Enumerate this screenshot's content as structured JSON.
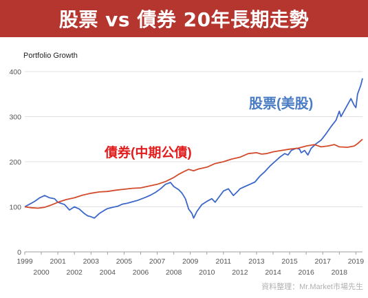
{
  "header": {
    "title": "股票 vs 債券 20年長期走勢"
  },
  "source_note": "資料整理：Mr.Market市場先生",
  "colors": {
    "banner": "#b5352f",
    "stock_line": "#3a66c9",
    "bond_line": "#d24a2a",
    "grid": "#e0e0e0",
    "axis_text": "#555555",
    "stock_label": "#4a7cc4",
    "bond_label": "#e11d1d"
  },
  "chart_data": {
    "type": "line",
    "subtitle": "Portfolio Growth",
    "ylim": [
      0,
      400
    ],
    "y_ticks": [
      0,
      100,
      200,
      300,
      400
    ],
    "xlim": [
      1999,
      2019.4
    ],
    "x_ticks": [
      "1999",
      "2000",
      "2001",
      "2002",
      "2003",
      "2004",
      "2005",
      "2006",
      "2007",
      "2008",
      "2009",
      "2010",
      "2011",
      "2012",
      "2013",
      "2014",
      "2015",
      "2016",
      "2017",
      "2018",
      "2019"
    ],
    "grid": true,
    "series": [
      {
        "name": "股票(美股)",
        "color": "#3a66c9",
        "points": [
          [
            1999.0,
            100
          ],
          [
            1999.3,
            106
          ],
          [
            1999.6,
            112
          ],
          [
            1999.9,
            120
          ],
          [
            2000.2,
            125
          ],
          [
            2000.5,
            120
          ],
          [
            2000.8,
            118
          ],
          [
            2001.0,
            110
          ],
          [
            2001.4,
            105
          ],
          [
            2001.7,
            93
          ],
          [
            2002.0,
            100
          ],
          [
            2002.3,
            95
          ],
          [
            2002.6,
            85
          ],
          [
            2002.8,
            80
          ],
          [
            2003.0,
            78
          ],
          [
            2003.2,
            75
          ],
          [
            2003.5,
            85
          ],
          [
            2003.8,
            92
          ],
          [
            2004.0,
            96
          ],
          [
            2004.3,
            99
          ],
          [
            2004.6,
            101
          ],
          [
            2004.9,
            106
          ],
          [
            2005.2,
            108
          ],
          [
            2005.5,
            111
          ],
          [
            2005.8,
            114
          ],
          [
            2006.0,
            117
          ],
          [
            2006.3,
            121
          ],
          [
            2006.6,
            126
          ],
          [
            2006.9,
            132
          ],
          [
            2007.2,
            140
          ],
          [
            2007.5,
            150
          ],
          [
            2007.8,
            154
          ],
          [
            2008.0,
            145
          ],
          [
            2008.3,
            138
          ],
          [
            2008.5,
            130
          ],
          [
            2008.7,
            118
          ],
          [
            2008.9,
            95
          ],
          [
            2009.1,
            85
          ],
          [
            2009.2,
            75
          ],
          [
            2009.4,
            90
          ],
          [
            2009.7,
            105
          ],
          [
            2010.0,
            112
          ],
          [
            2010.3,
            118
          ],
          [
            2010.5,
            110
          ],
          [
            2010.8,
            125
          ],
          [
            2011.0,
            135
          ],
          [
            2011.3,
            140
          ],
          [
            2011.6,
            125
          ],
          [
            2011.8,
            132
          ],
          [
            2012.0,
            140
          ],
          [
            2012.3,
            145
          ],
          [
            2012.6,
            150
          ],
          [
            2012.9,
            155
          ],
          [
            2013.2,
            168
          ],
          [
            2013.5,
            178
          ],
          [
            2013.8,
            190
          ],
          [
            2014.1,
            200
          ],
          [
            2014.4,
            210
          ],
          [
            2014.7,
            218
          ],
          [
            2014.9,
            215
          ],
          [
            2015.1,
            225
          ],
          [
            2015.4,
            230
          ],
          [
            2015.6,
            228
          ],
          [
            2015.7,
            220
          ],
          [
            2015.9,
            225
          ],
          [
            2016.1,
            215
          ],
          [
            2016.3,
            230
          ],
          [
            2016.6,
            240
          ],
          [
            2016.9,
            248
          ],
          [
            2017.2,
            262
          ],
          [
            2017.5,
            278
          ],
          [
            2017.8,
            292
          ],
          [
            2018.0,
            312
          ],
          [
            2018.1,
            300
          ],
          [
            2018.4,
            320
          ],
          [
            2018.7,
            340
          ],
          [
            2018.9,
            325
          ],
          [
            2019.0,
            320
          ],
          [
            2019.1,
            350
          ],
          [
            2019.2,
            360
          ],
          [
            2019.3,
            370
          ],
          [
            2019.4,
            385
          ]
        ]
      },
      {
        "name": "債券(中期公債)",
        "color": "#d24a2a",
        "points": [
          [
            1999.0,
            100
          ],
          [
            1999.4,
            98
          ],
          [
            1999.8,
            97
          ],
          [
            2000.2,
            99
          ],
          [
            2000.6,
            104
          ],
          [
            2001.0,
            110
          ],
          [
            2001.5,
            116
          ],
          [
            2002.0,
            120
          ],
          [
            2002.5,
            126
          ],
          [
            2003.0,
            130
          ],
          [
            2003.5,
            133
          ],
          [
            2004.0,
            134
          ],
          [
            2004.5,
            137
          ],
          [
            2005.0,
            139
          ],
          [
            2005.5,
            141
          ],
          [
            2006.0,
            142
          ],
          [
            2006.5,
            146
          ],
          [
            2007.0,
            150
          ],
          [
            2007.5,
            156
          ],
          [
            2008.0,
            165
          ],
          [
            2008.3,
            172
          ],
          [
            2008.6,
            178
          ],
          [
            2008.9,
            183
          ],
          [
            2009.2,
            180
          ],
          [
            2009.5,
            184
          ],
          [
            2010.0,
            188
          ],
          [
            2010.5,
            196
          ],
          [
            2011.0,
            200
          ],
          [
            2011.5,
            206
          ],
          [
            2012.0,
            210
          ],
          [
            2012.5,
            218
          ],
          [
            2013.0,
            220
          ],
          [
            2013.3,
            217
          ],
          [
            2013.6,
            218
          ],
          [
            2014.0,
            222
          ],
          [
            2014.5,
            225
          ],
          [
            2015.0,
            228
          ],
          [
            2015.5,
            230
          ],
          [
            2016.0,
            235
          ],
          [
            2016.5,
            238
          ],
          [
            2016.9,
            233
          ],
          [
            2017.3,
            235
          ],
          [
            2017.7,
            238
          ],
          [
            2018.0,
            233
          ],
          [
            2018.5,
            232
          ],
          [
            2018.9,
            235
          ],
          [
            2019.1,
            240
          ],
          [
            2019.4,
            250
          ]
        ]
      }
    ]
  }
}
